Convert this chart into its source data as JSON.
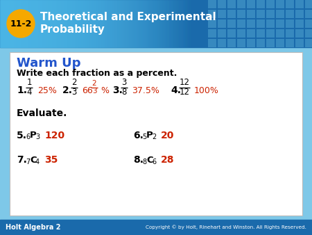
{
  "lesson_num": "11-2",
  "title_line1": "Theoretical and Experimental",
  "title_line2": "Probability",
  "header_bg_dark": "#1a6aab",
  "header_bg_light": "#4db8e8",
  "circle_color": "#f5a800",
  "header_text_color": "#ffffff",
  "warm_up_title": "Warm Up",
  "warm_up_color": "#2255cc",
  "instruction1": "Write each fraction as a percent.",
  "instruction2": "Evaluate.",
  "black": "#000000",
  "red": "#cc2200",
  "footer_bg": "#1a6aab",
  "footer_left": "Holt Algebra 2",
  "footer_right": "Copyright © by Holt, Rinehart and Winston. All Rights Reserved.",
  "footer_text_color": "#ffffff",
  "body_bg": "#ffffff",
  "outer_bg": "#7ec8e8"
}
